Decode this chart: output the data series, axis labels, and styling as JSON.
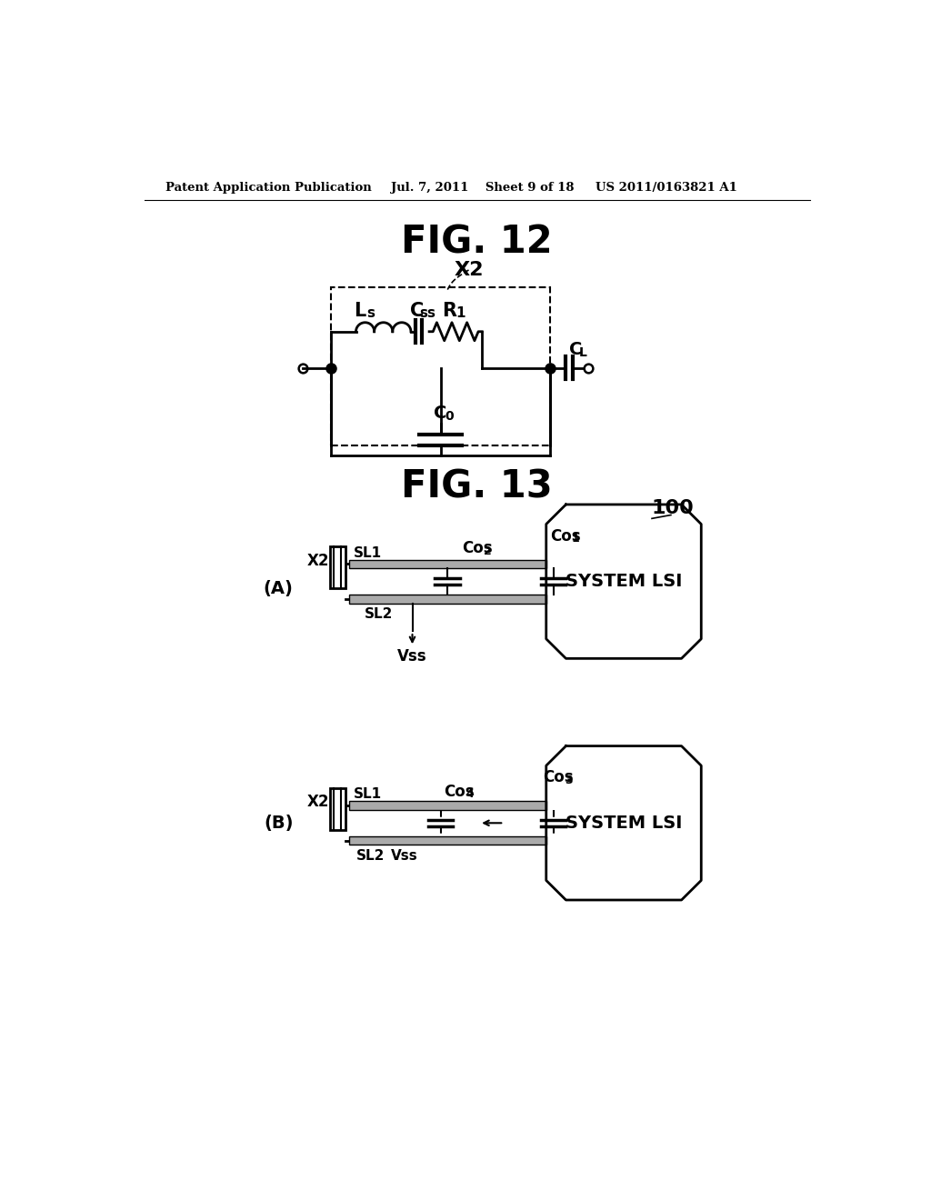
{
  "bg_color": "#ffffff",
  "header_left": "Patent Application Publication",
  "header_center": "Jul. 7, 2011    Sheet 9 of 18",
  "header_right": "US 2011/0163821 A1",
  "fig12_title": "FIG. 12",
  "fig13_title": "FIG. 13",
  "label_X2": "X2",
  "label_Ls": "Ls",
  "label_Css": "Css",
  "label_R1": "R1",
  "label_C0": "C0",
  "label_CL": "CL",
  "label_100": "100",
  "label_A": "(A)",
  "label_B": "(B)",
  "label_SL1": "SL1",
  "label_SL2": "SL2",
  "label_Cos1": "Cos1",
  "label_Cos2": "Cos2",
  "label_Cos3": "Cos3",
  "label_Cos4": "Cos4",
  "label_Vss": "Vss",
  "label_SYSTEM_LSI": "SYSTEM LSI"
}
